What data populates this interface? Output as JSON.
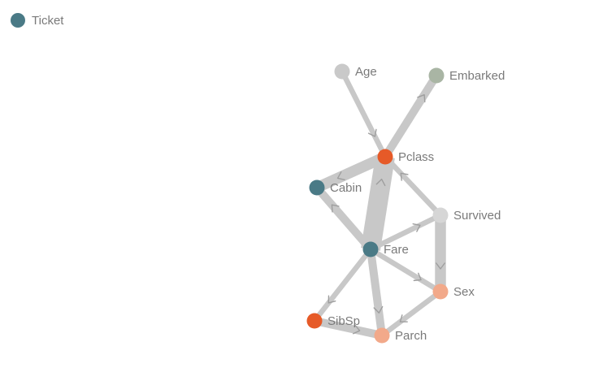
{
  "colors": {
    "background": "#ffffff",
    "edge": "#c8c8c8",
    "arrow": "#9e9e9e",
    "label": "#7a7a7a"
  },
  "isolated_node": {
    "label": "Ticket",
    "color": "#4a7a86"
  },
  "nodes": [
    {
      "id": "age",
      "label": "Age",
      "color": "#c9c9c9"
    },
    {
      "id": "embarked",
      "label": "Embarked",
      "color": "#a9b5a4"
    },
    {
      "id": "pclass",
      "label": "Pclass",
      "color": "#e65a28"
    },
    {
      "id": "cabin",
      "label": "Cabin",
      "color": "#4a7a86"
    },
    {
      "id": "survived",
      "label": "Survived",
      "color": "#d6d6d6"
    },
    {
      "id": "fare",
      "label": "Fare",
      "color": "#4a7a86"
    },
    {
      "id": "sex",
      "label": "Sex",
      "color": "#f2a98a"
    },
    {
      "id": "sibsp",
      "label": "SibSp",
      "color": "#e65a28"
    },
    {
      "id": "parch",
      "label": "Parch",
      "color": "#f2a98a"
    }
  ],
  "edges": [
    {
      "from": "age",
      "to": "pclass",
      "weight": 1
    },
    {
      "from": "pclass",
      "to": "embarked",
      "weight": 2
    },
    {
      "from": "pclass",
      "to": "cabin",
      "weight": 3
    },
    {
      "from": "fare",
      "to": "pclass",
      "weight": 6
    },
    {
      "from": "survived",
      "to": "pclass",
      "weight": 1
    },
    {
      "from": "fare",
      "to": "cabin",
      "weight": 2
    },
    {
      "from": "fare",
      "to": "survived",
      "weight": 1
    },
    {
      "from": "survived",
      "to": "sex",
      "weight": 3
    },
    {
      "from": "fare",
      "to": "sex",
      "weight": 1
    },
    {
      "from": "fare",
      "to": "sibsp",
      "weight": 1
    },
    {
      "from": "fare",
      "to": "parch",
      "weight": 2
    },
    {
      "from": "sex",
      "to": "parch",
      "weight": 1
    },
    {
      "from": "sibsp",
      "to": "parch",
      "weight": 2
    }
  ]
}
